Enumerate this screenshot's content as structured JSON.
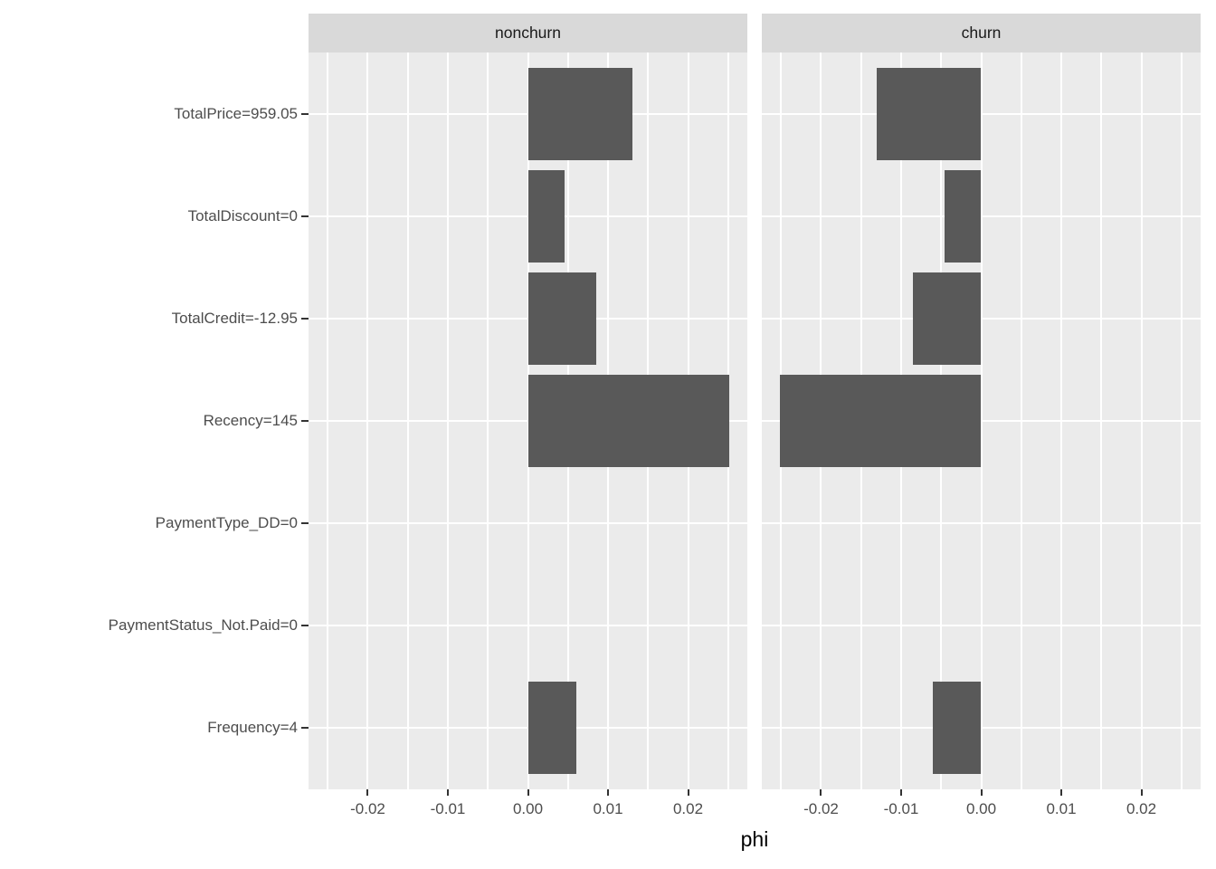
{
  "chart_data": {
    "type": "bar",
    "orientation": "horizontal",
    "xlabel": "phi",
    "categories": [
      "TotalPrice=959.05",
      "TotalDiscount=0",
      "TotalCredit=-12.95",
      "Recency=145",
      "PaymentType_DD=0",
      "PaymentStatus_Not.Paid=0",
      "Frequency=4"
    ],
    "facets": [
      {
        "label": "nonchurn",
        "values": [
          0.0131,
          0.0046,
          0.0085,
          0.0251,
          0,
          0,
          0.006
        ]
      },
      {
        "label": "churn",
        "values": [
          -0.0131,
          -0.0046,
          -0.0085,
          -0.0251,
          0,
          0,
          -0.006
        ]
      }
    ],
    "x_ticks": [
      {
        "value": -0.02,
        "label": "-0.02"
      },
      {
        "value": -0.01,
        "label": "-0.01"
      },
      {
        "value": 0.0,
        "label": "0.00"
      },
      {
        "value": 0.01,
        "label": "0.01"
      },
      {
        "value": 0.02,
        "label": "0.02"
      }
    ],
    "x_minor_step": 0.005,
    "xlim": [
      -0.0274,
      0.0274
    ],
    "bar_width_frac": 0.9,
    "grid": "on",
    "legend_position": "none",
    "colors": {
      "bar": "#595959",
      "panel_bg": "#EBEBEB",
      "strip_bg": "#D9D9D9",
      "gridline": "#FFFFFF",
      "axis_text": "#4D4D4D",
      "strip_text": "#1A1A1A",
      "axis_title": "#000000",
      "tick_mark": "#333333",
      "background": "#FFFFFF"
    }
  }
}
